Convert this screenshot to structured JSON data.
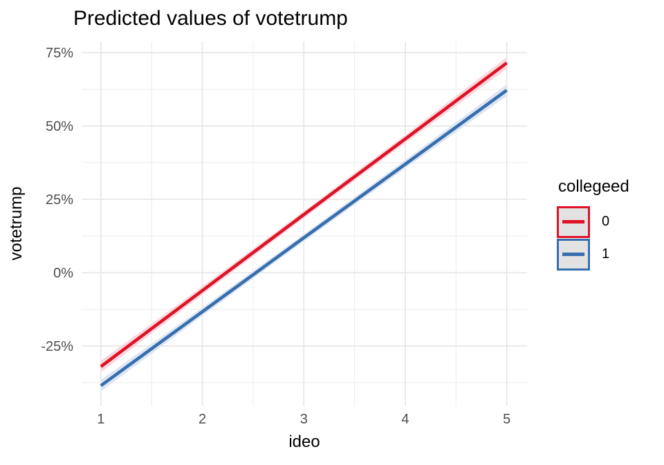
{
  "title": "Predicted values of votetrump",
  "chart_data": {
    "type": "line",
    "title": "Predicted values of votetrump",
    "xlabel": "ideo",
    "ylabel": "votetrump",
    "legend_title": "collegeed",
    "legend_position": "right",
    "grid": true,
    "x": [
      1,
      2,
      3,
      4,
      5
    ],
    "xlim": [
      0.81,
      5.2
    ],
    "ylim": [
      -45.5,
      78.8
    ],
    "x_ticks": {
      "values": [
        1,
        2,
        3,
        4,
        5
      ],
      "labels": [
        "1",
        "2",
        "3",
        "4",
        "5"
      ]
    },
    "x_minor_ticks": [
      1.5,
      2.5,
      3.5,
      4.5
    ],
    "y_ticks": {
      "values": [
        75,
        50,
        25,
        0,
        -25
      ],
      "labels": [
        "75%",
        "50%",
        "25%",
        "0%",
        "-25%"
      ]
    },
    "y_minor_ticks": [
      62.5,
      37.5,
      12.5,
      -12.5,
      -37.5
    ],
    "series": [
      {
        "name": "0",
        "color": "#E01228",
        "ribbon_color": "#F9D9DE",
        "values": [
          -32.0,
          -6.1,
          19.8,
          45.6,
          71.5
        ],
        "ci_halfwidth": [
          2.0,
          1.4,
          1.2,
          1.4,
          2.0
        ]
      },
      {
        "name": "1",
        "color": "#376EAF",
        "ribbon_color": "#DDE6F2",
        "values": [
          -38.5,
          -13.3,
          11.9,
          37.0,
          62.2
        ],
        "ci_halfwidth": [
          2.0,
          1.4,
          1.2,
          1.4,
          2.0
        ]
      }
    ]
  },
  "legend": {
    "key_fill": "#E2E2E2"
  },
  "colors": {
    "background": "#FFFFFF",
    "grid_major": "#E5E5E5",
    "grid_minor": "#EEEEEE",
    "tick_label": "#4D4D4D",
    "text": "#000000"
  }
}
